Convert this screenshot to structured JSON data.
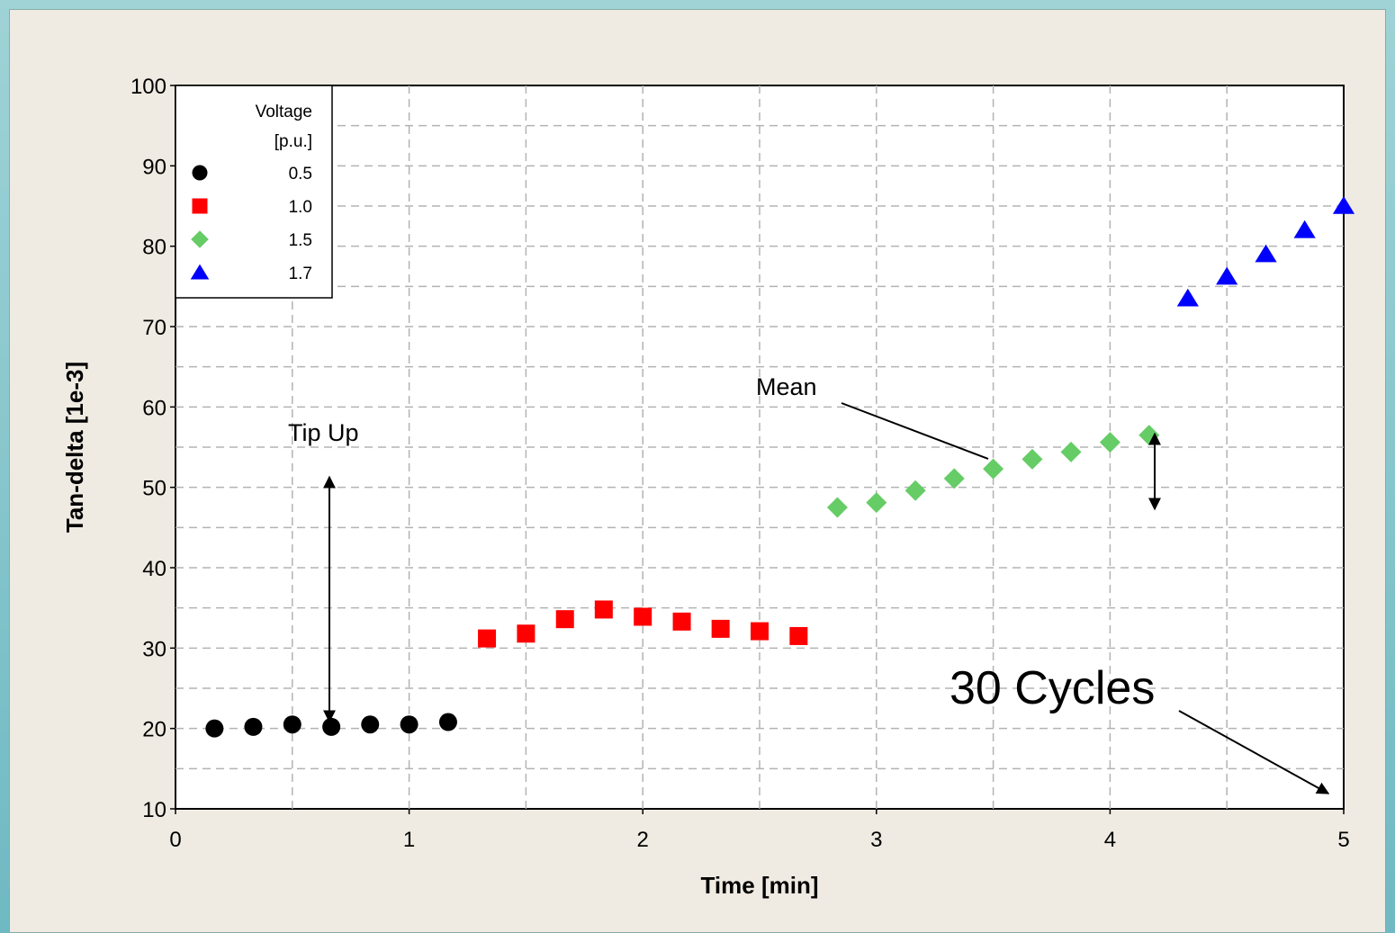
{
  "chart_data": {
    "type": "scatter",
    "xlabel": "Time [min]",
    "ylabel": "Tan-delta [1e-3]",
    "xlim": [
      0,
      5
    ],
    "ylim": [
      10,
      100
    ],
    "x_ticks": [
      "0",
      "1",
      "2",
      "3",
      "4",
      "5"
    ],
    "y_ticks": [
      "10",
      "20",
      "30",
      "40",
      "50",
      "60",
      "70",
      "80",
      "90",
      "100"
    ],
    "grid": true,
    "legend": {
      "title_line1": "Voltage",
      "title_line2": "[p.u.]",
      "placement": "top-left"
    },
    "series": [
      {
        "name": "0.5",
        "marker": "circle",
        "color": "#000000",
        "x": [
          0.167,
          0.333,
          0.5,
          0.667,
          0.833,
          1.0,
          1.167
        ],
        "y": [
          20.0,
          20.2,
          20.5,
          20.2,
          20.5,
          20.5,
          20.8
        ]
      },
      {
        "name": "1.0",
        "marker": "square",
        "color": "#ff0000",
        "x": [
          1.333,
          1.5,
          1.667,
          1.833,
          2.0,
          2.167,
          2.333,
          2.5,
          2.667
        ],
        "y": [
          31.2,
          31.8,
          33.6,
          34.8,
          33.9,
          33.3,
          32.4,
          32.1,
          31.5
        ]
      },
      {
        "name": "1.5",
        "marker": "diamond",
        "color": "#66cc66",
        "x": [
          2.833,
          3.0,
          3.167,
          3.333,
          3.5,
          3.667,
          3.833,
          4.0,
          4.167
        ],
        "y": [
          47.5,
          48.1,
          49.6,
          51.1,
          52.3,
          53.5,
          54.4,
          55.6,
          56.5
        ]
      },
      {
        "name": "1.7",
        "marker": "triangle",
        "color": "#0000ff",
        "x": [
          4.333,
          4.5,
          4.667,
          4.833,
          5.0
        ],
        "y": [
          73.5,
          76.2,
          79.0,
          82.0,
          85.0
        ]
      }
    ],
    "annotations": [
      {
        "text": "Tip Up"
      },
      {
        "text": "Mean"
      },
      {
        "text": "30 Cycles"
      }
    ]
  }
}
